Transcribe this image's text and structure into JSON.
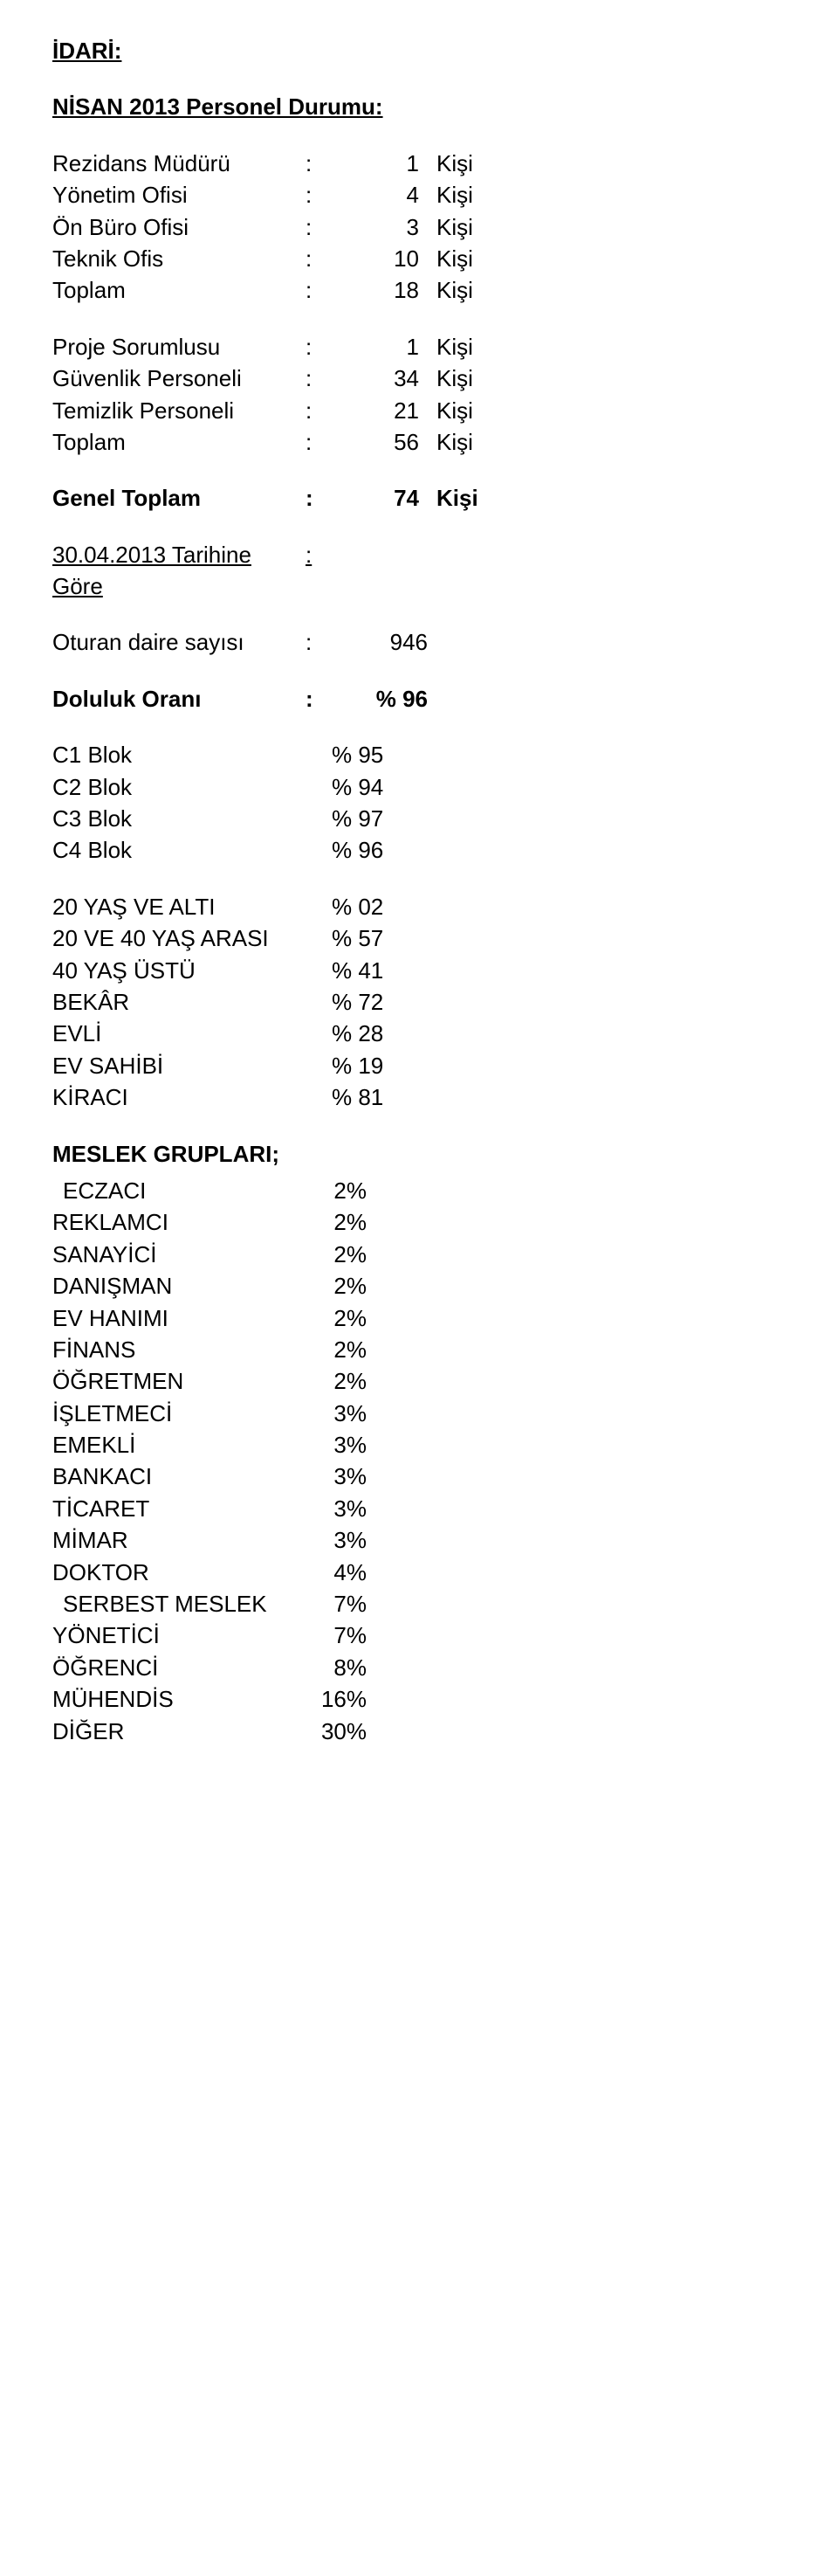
{
  "heading_idari": "İDARİ:",
  "heading_personel": "NİSAN 2013 Personel Durumu:",
  "unit": "Kişi",
  "personel_block1": [
    {
      "label": "Rezidans Müdürü",
      "num": "1"
    },
    {
      "label": "Yönetim Ofisi",
      "num": "4"
    },
    {
      "label": "Ön Büro Ofisi",
      "num": "3"
    },
    {
      "label": "Teknik Ofis",
      "num": "10"
    },
    {
      "label": "Toplam",
      "num": "18"
    }
  ],
  "personel_block2": [
    {
      "label": "Proje Sorumlusu",
      "num": "1"
    },
    {
      "label": "Güvenlik Personeli",
      "num": "34"
    },
    {
      "label": "Temizlik Personeli",
      "num": "21"
    },
    {
      "label": "Toplam",
      "num": "56"
    }
  ],
  "genel_toplam": {
    "label": "Genel Toplam",
    "num": "74"
  },
  "tarih_label": "30.04.2013 Tarihine Göre",
  "oturan": {
    "label": "Oturan daire sayısı",
    "num": "946"
  },
  "doluluk": {
    "label": "Doluluk Oranı",
    "num": "% 96"
  },
  "blok": [
    {
      "label": "C1 Blok",
      "pct": "% 95"
    },
    {
      "label": "C2 Blok",
      "pct": "% 94"
    },
    {
      "label": "C3 Blok",
      "pct": "% 97"
    },
    {
      "label": "C4 Blok",
      "pct": "% 96"
    }
  ],
  "demografi": [
    {
      "label": "20 YAŞ VE ALTI",
      "pct": "% 02"
    },
    {
      "label": "20 VE 40 YAŞ ARASI",
      "pct": "% 57"
    },
    {
      "label": "40 YAŞ ÜSTÜ",
      "pct": "% 41"
    },
    {
      "label": "BEKÂR",
      "pct": "% 72"
    },
    {
      "label": "EVLİ",
      "pct": "% 28"
    },
    {
      "label": "EV SAHİBİ",
      "pct": "% 19"
    },
    {
      "label": "KİRACI",
      "pct": "% 81"
    }
  ],
  "meslek_heading": "MESLEK GRUPLARI;",
  "meslek": [
    {
      "label": "ECZACI",
      "pct": "2%",
      "indent": true
    },
    {
      "label": "REKLAMCI",
      "pct": "2%"
    },
    {
      "label": "SANAYİCİ",
      "pct": "2%"
    },
    {
      "label": "DANIŞMAN",
      "pct": "2%"
    },
    {
      "label": "EV HANIMI",
      "pct": "2%"
    },
    {
      "label": "FİNANS",
      "pct": "2%"
    },
    {
      "label": "ÖĞRETMEN",
      "pct": "2%"
    },
    {
      "label": "İŞLETMECİ",
      "pct": "3%"
    },
    {
      "label": "EMEKLİ",
      "pct": "3%"
    },
    {
      "label": "BANKACI",
      "pct": "3%"
    },
    {
      "label": "TİCARET",
      "pct": "3%"
    },
    {
      "label": "MİMAR",
      "pct": "3%"
    },
    {
      "label": "DOKTOR",
      "pct": "4%"
    },
    {
      "label": "SERBEST MESLEK",
      "pct": "7%",
      "indent": true
    },
    {
      "label": "YÖNETİCİ",
      "pct": "7%"
    },
    {
      "label": "ÖĞRENCİ",
      "pct": "8%"
    },
    {
      "label": "MÜHENDİS",
      "pct": "16%"
    },
    {
      "label": "DİĞER",
      "pct": "30%"
    }
  ]
}
